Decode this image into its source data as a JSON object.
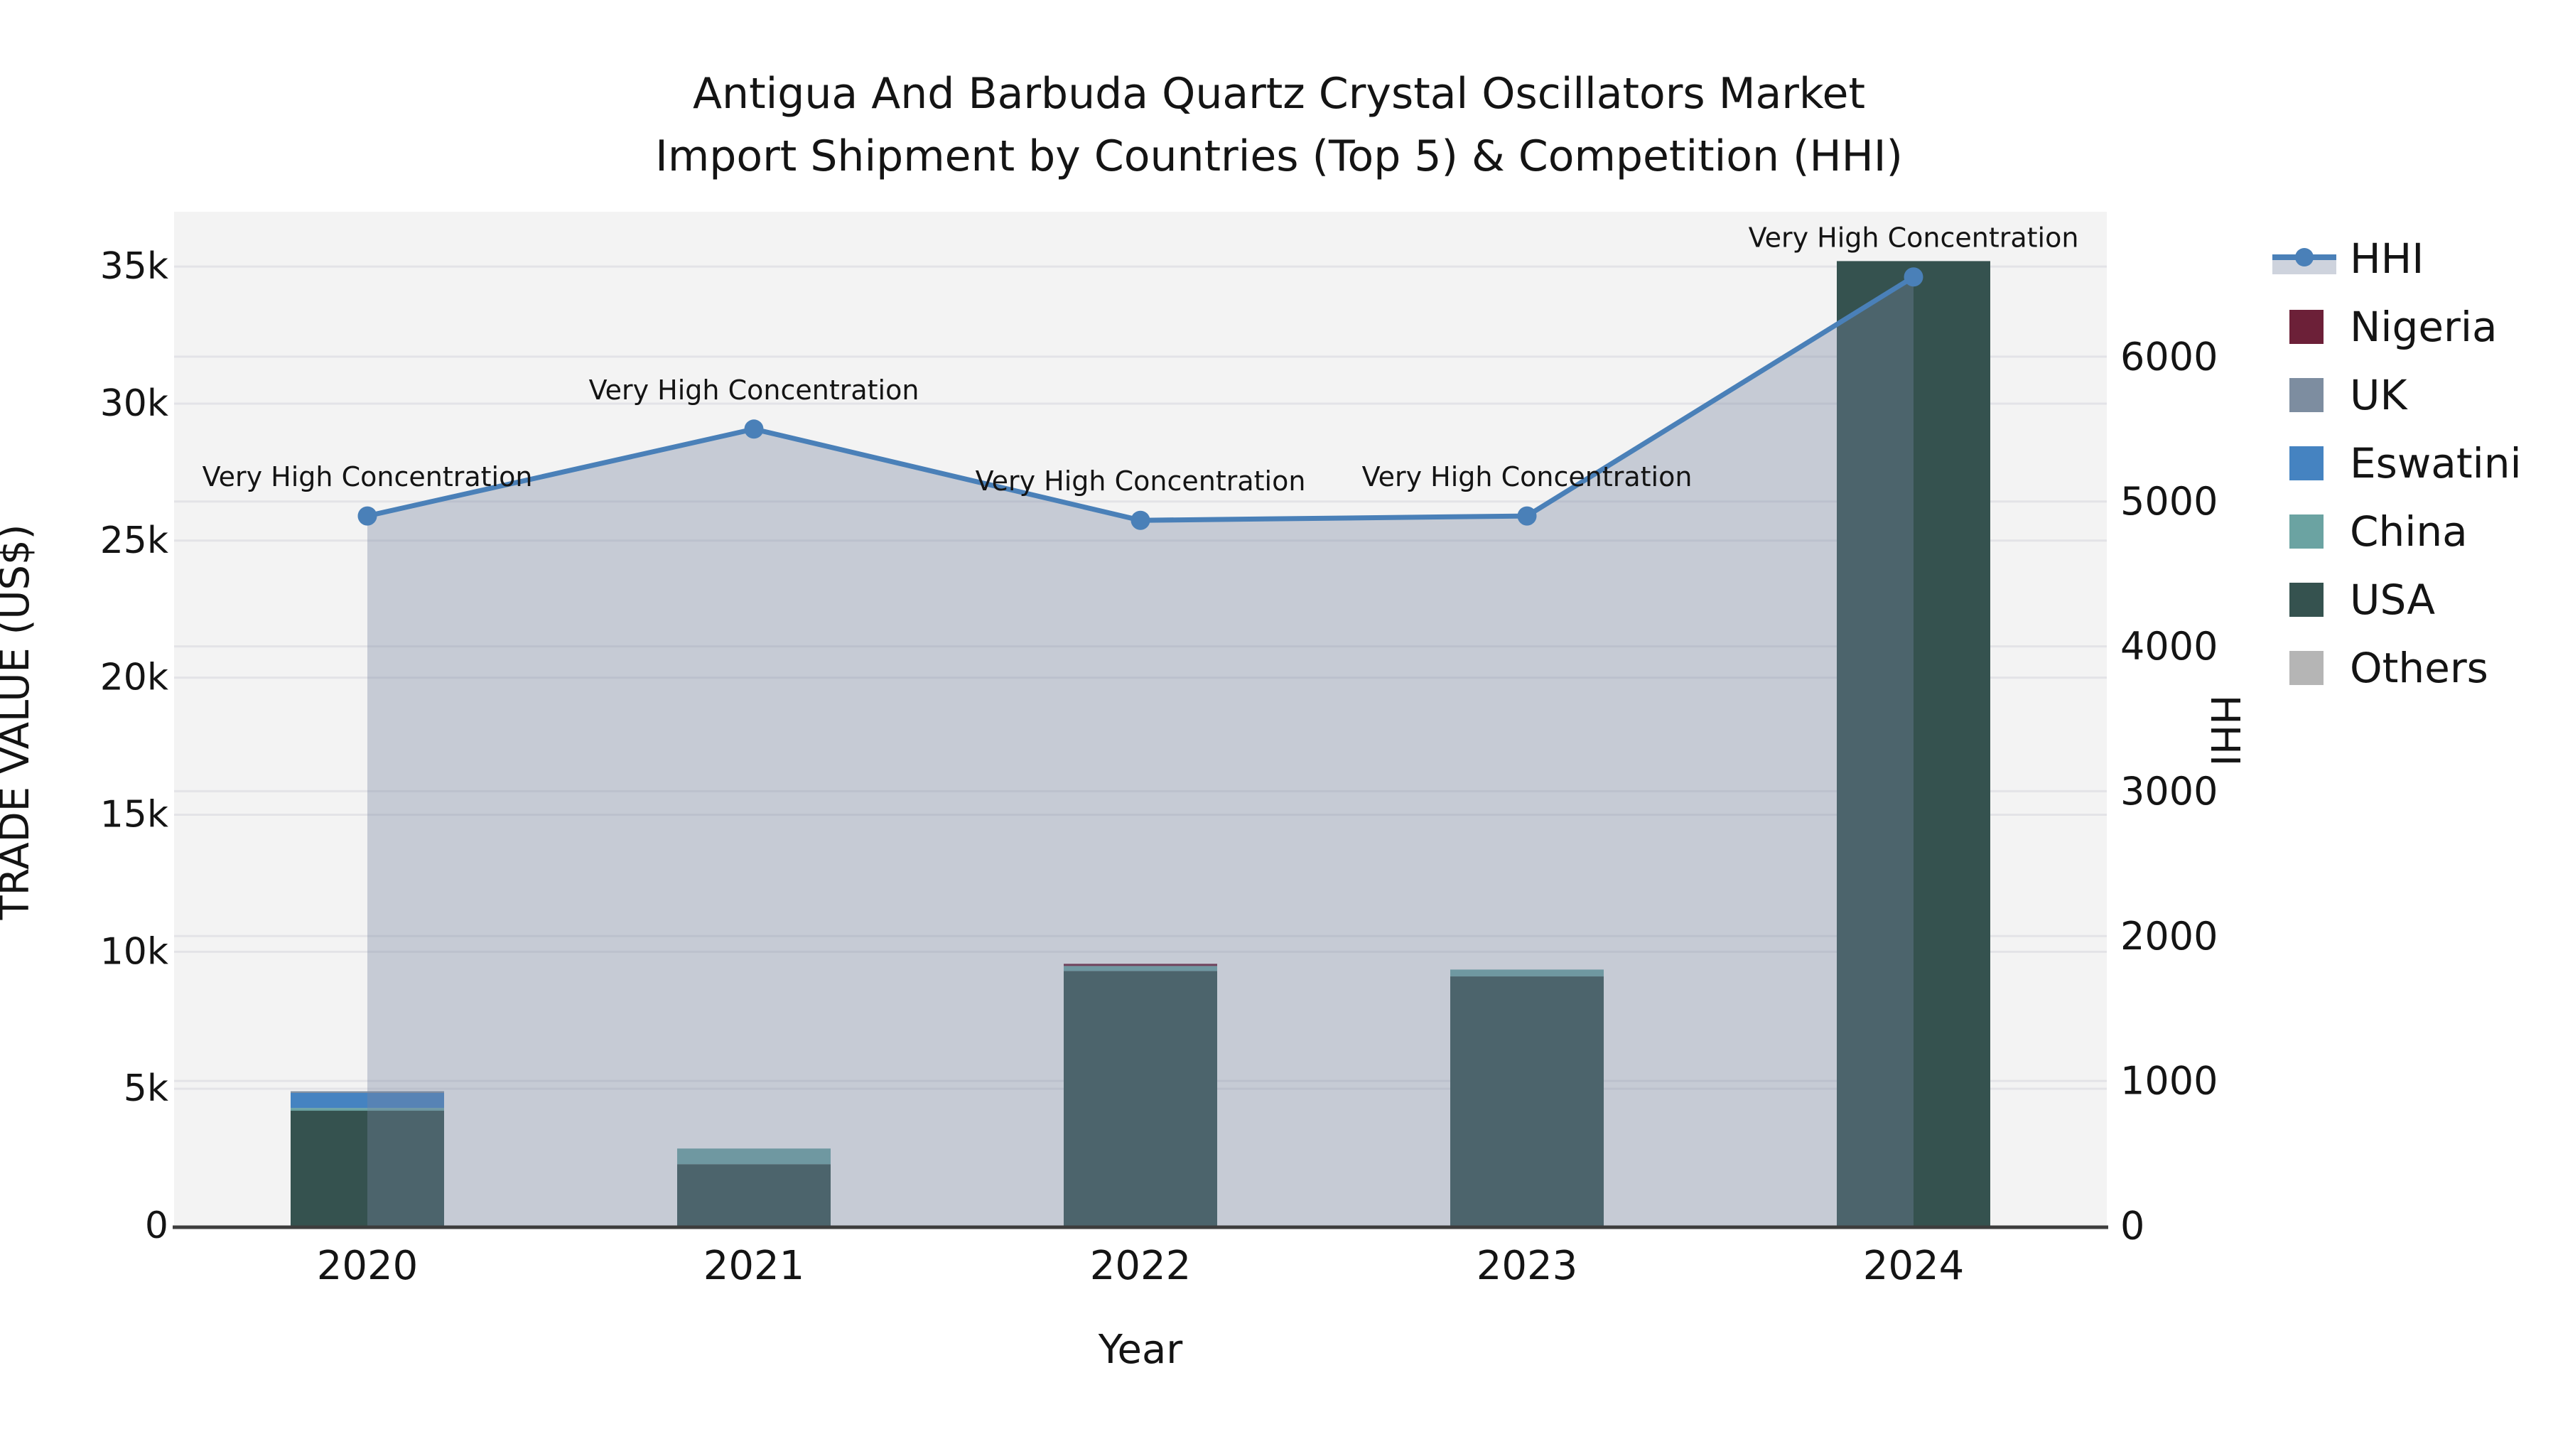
{
  "title": {
    "line1": "Antigua And Barbuda Quartz Crystal Oscillators Market",
    "line2": "Import Shipment by Countries (Top 5) & Competition (HHI)"
  },
  "axes": {
    "x": {
      "label": "Year",
      "tick_labels": [
        "2020",
        "2021",
        "2022",
        "2023",
        "2024"
      ]
    },
    "y_left": {
      "label": "TRADE VALUE (US$)",
      "tick_labels": [
        "0",
        "5k",
        "10k",
        "15k",
        "20k",
        "25k",
        "30k",
        "35k"
      ],
      "tick_values": [
        0,
        5000,
        10000,
        15000,
        20000,
        25000,
        30000,
        35000
      ],
      "range": [
        0,
        37000
      ]
    },
    "y_right": {
      "label": "HHI",
      "tick_labels": [
        "0",
        "1000",
        "2000",
        "3000",
        "4000",
        "5000",
        "6000"
      ],
      "tick_values": [
        0,
        1000,
        2000,
        3000,
        4000,
        5000,
        6000
      ],
      "range": [
        0,
        7000
      ]
    }
  },
  "legend": {
    "items": [
      {
        "label": "HHI",
        "marker": "line-dot",
        "color": "#4a80b8"
      },
      {
        "label": "Nigeria",
        "marker": "square",
        "color": "#6c2038"
      },
      {
        "label": "UK",
        "marker": "square",
        "color": "#7d8da0"
      },
      {
        "label": "Eswatini",
        "marker": "square",
        "color": "#4583c1"
      },
      {
        "label": "China",
        "marker": "square",
        "color": "#6ba3a2"
      },
      {
        "label": "USA",
        "marker": "square",
        "color": "#35524f"
      },
      {
        "label": "Others",
        "marker": "square",
        "color": "#b5b5b5"
      }
    ]
  },
  "colors": {
    "figure_background": "#ffffff",
    "plot_background": "#f3f3f3",
    "gridline": "#e3e3e7",
    "axis_line": "#3d3d3d",
    "text": "#141414",
    "hhi_line": "#4a80b8",
    "hhi_area_fill": "rgba(119,134,161,0.36)",
    "hhi_legend_band": "#ced3dd"
  },
  "chart_data": {
    "type": "bar",
    "subtype": "stacked-bars-with-line-overlay",
    "categories": [
      "2020",
      "2021",
      "2022",
      "2023",
      "2024"
    ],
    "stack_order_bottom_to_top": [
      "USA",
      "China",
      "Eswatini",
      "UK",
      "Nigeria",
      "Others"
    ],
    "series": [
      {
        "name": "Nigeria",
        "axis": "left",
        "render": "bar",
        "color": "#6c2038",
        "values": [
          0,
          0,
          80,
          0,
          0
        ]
      },
      {
        "name": "UK",
        "axis": "left",
        "render": "bar",
        "color": "#7d8da0",
        "values": [
          60,
          0,
          0,
          0,
          0
        ]
      },
      {
        "name": "Eswatini",
        "axis": "left",
        "render": "bar",
        "color": "#4583c1",
        "values": [
          550,
          0,
          0,
          0,
          0
        ]
      },
      {
        "name": "China",
        "axis": "left",
        "render": "bar",
        "color": "#6ba3a2",
        "values": [
          100,
          570,
          180,
          250,
          0
        ]
      },
      {
        "name": "USA",
        "axis": "left",
        "render": "bar",
        "color": "#35524f",
        "values": [
          4200,
          2250,
          9300,
          9100,
          35200
        ]
      },
      {
        "name": "Others",
        "axis": "left",
        "render": "bar",
        "color": "#b5b5b5",
        "values": [
          0,
          0,
          0,
          0,
          0
        ]
      },
      {
        "name": "HHI",
        "axis": "right",
        "render": "line-area",
        "color": "#4a80b8",
        "values": [
          4900,
          5500,
          4870,
          4900,
          6550
        ]
      }
    ],
    "bar_totals": [
      4910,
      2820,
      9560,
      9350,
      35200
    ],
    "annotations": [
      {
        "category": "2020",
        "text": "Very High Concentration"
      },
      {
        "category": "2021",
        "text": "Very High Concentration"
      },
      {
        "category": "2022",
        "text": "Very High Concentration"
      },
      {
        "category": "2023",
        "text": "Very High Concentration"
      },
      {
        "category": "2024",
        "text": "Very High Concentration"
      }
    ],
    "title": "Antigua And Barbuda Quartz Crystal Oscillators Market — Import Shipment by Countries (Top 5) & Competition (HHI)",
    "xlabel": "Year",
    "ylabel_left": "TRADE VALUE (US$)",
    "ylabel_right": "HHI",
    "ylim_left": [
      0,
      37000
    ],
    "ylim_right": [
      0,
      7000
    ],
    "grid": true,
    "legend_position": "right"
  }
}
